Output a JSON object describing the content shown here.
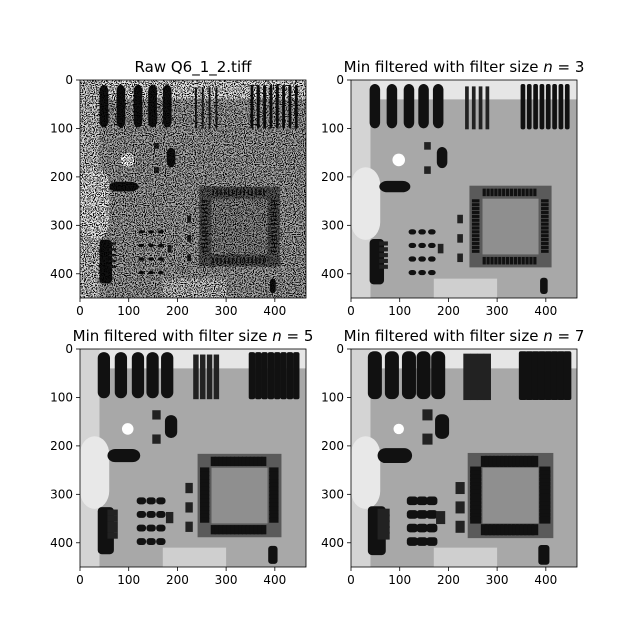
{
  "chart_data": [
    {
      "type": "image",
      "title": "Raw Q6_1_2.tiff",
      "filter_size": 1,
      "noise": true,
      "xlim": [
        0,
        464
      ],
      "ylim": [
        450,
        0
      ],
      "xticks": [
        0,
        100,
        200,
        300,
        400
      ],
      "yticks": [
        0,
        100,
        200,
        300,
        400
      ]
    },
    {
      "type": "image",
      "title": "Min filtered with filter size n = 3",
      "title_parts": {
        "prefix": "Min filtered with filter size ",
        "var": "n",
        "suffix": " = 3"
      },
      "filter_size": 3,
      "noise": false,
      "xlim": [
        0,
        464
      ],
      "ylim": [
        450,
        0
      ],
      "xticks": [
        0,
        100,
        200,
        300,
        400
      ],
      "yticks": [
        0,
        100,
        200,
        300,
        400
      ]
    },
    {
      "type": "image",
      "title": "Min filtered with filter size n = 5",
      "title_parts": {
        "prefix": "Min filtered with filter size ",
        "var": "n",
        "suffix": " = 5"
      },
      "filter_size": 5,
      "noise": false,
      "xlim": [
        0,
        464
      ],
      "ylim": [
        450,
        0
      ],
      "xticks": [
        0,
        100,
        200,
        300,
        400
      ],
      "yticks": [
        0,
        100,
        200,
        300,
        400
      ]
    },
    {
      "type": "image",
      "title": "Min filtered with filter size n = 7",
      "title_parts": {
        "prefix": "Min filtered with filter size ",
        "var": "n",
        "suffix": " = 7"
      },
      "filter_size": 7,
      "noise": false,
      "xlim": [
        0,
        464
      ],
      "ylim": [
        450,
        0
      ],
      "xticks": [
        0,
        100,
        200,
        300,
        400
      ],
      "yticks": [
        0,
        100,
        200,
        300,
        400
      ]
    }
  ]
}
